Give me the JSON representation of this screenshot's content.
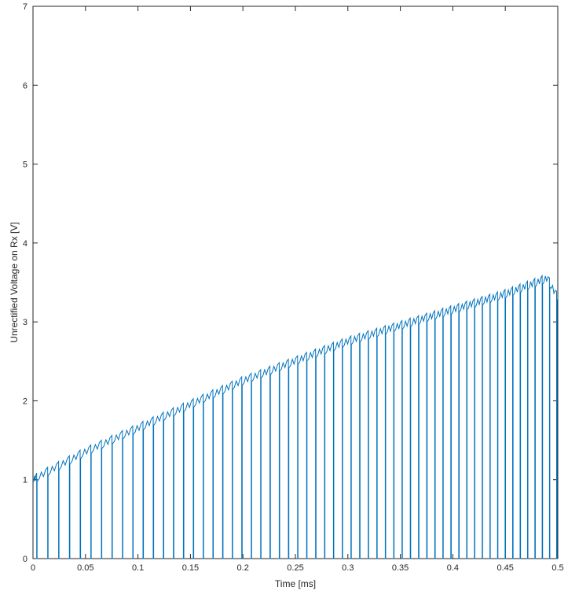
{
  "chart_data": {
    "type": "line",
    "title": "",
    "xlabel": "Time [ms]",
    "ylabel": "Unrectified Voltage on Rx [V]",
    "xlim": [
      0,
      0.5
    ],
    "ylim": [
      0,
      7
    ],
    "xticks": [
      0,
      0.05,
      0.1,
      0.15,
      0.2,
      0.25,
      0.3,
      0.35,
      0.4,
      0.45,
      0.5
    ],
    "xtick_labels": [
      "0",
      "0.05",
      "0.1",
      "0.15",
      "0.2",
      "0.25",
      "0.3",
      "0.35",
      "0.4",
      "0.45",
      "0.5"
    ],
    "yticks": [
      0,
      1,
      2,
      3,
      4,
      5,
      6,
      7
    ],
    "ytick_labels": [
      "0",
      "1",
      "2",
      "3",
      "4",
      "5",
      "6",
      "7"
    ],
    "grid": false,
    "legend": false,
    "line_color": "#0072BD",
    "series": [
      {
        "description": "pulse train envelope: voltage ramps up over time with periodic drops to 0 V",
        "envelope": {
          "x": [
            0,
            0.05,
            0.1,
            0.15,
            0.2,
            0.25,
            0.3,
            0.35,
            0.4,
            0.45,
            0.49,
            0.5
          ],
          "y": [
            1.0,
            1.35,
            1.65,
            1.95,
            2.25,
            2.5,
            2.75,
            2.95,
            3.15,
            3.35,
            3.55,
            3.3
          ]
        },
        "pulse_start_ms": 0.0035,
        "pulse_period_start_ms": 0.0105,
        "pulse_period_end_ms": 0.0068
      }
    ]
  }
}
